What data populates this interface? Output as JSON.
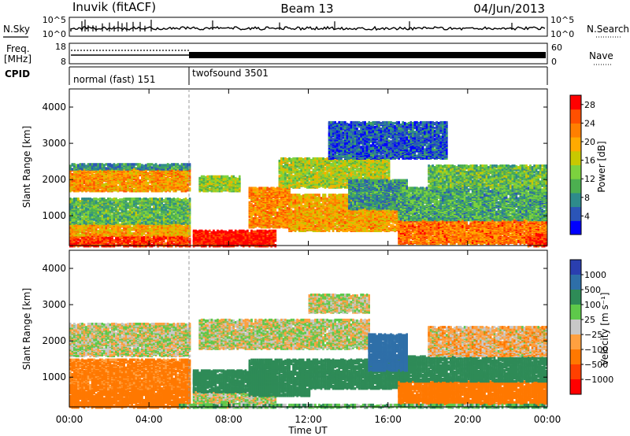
{
  "header": {
    "station": "Inuvik (fitACF)",
    "beam": "Beam 13",
    "date": "04/Jun/2013"
  },
  "nsky_panel": {
    "left_label": "N.Sky",
    "left_ticks": [
      "10^5",
      "10^0"
    ],
    "right_label": "N.Search",
    "right_ticks": [
      "10^5",
      "10^0"
    ]
  },
  "freq_panel": {
    "left_label_top": "Freq.",
    "left_label_bottom": "[MHz]",
    "left_ticks": [
      18,
      8
    ],
    "right_label": "Nave",
    "right_ticks": [
      60,
      0
    ]
  },
  "cpid_panel": {
    "label": "CPID",
    "programs": [
      {
        "name": "normal (fast) 151",
        "start": 0,
        "end": 6
      },
      {
        "name": "twofsound 3501",
        "start": 6,
        "end": 24
      }
    ]
  },
  "chart_data": [
    {
      "type": "heatmap",
      "title": "Power",
      "xlabel": "Time UT",
      "ylabel": "Slant Range [km]",
      "xlim": [
        0,
        24
      ],
      "ylim": [
        180,
        4500
      ],
      "x_ticks": [
        "00:00",
        "04:00",
        "08:00",
        "12:00",
        "16:00",
        "20:00",
        "00:00"
      ],
      "y_ticks": [
        1000,
        2000,
        3000,
        4000
      ],
      "colorbar": {
        "label": "Power [dB]",
        "ticks": [
          4,
          8,
          12,
          16,
          20,
          24,
          28
        ],
        "range": [
          0,
          30
        ],
        "colors": [
          "#0000ff",
          "#2b55b8",
          "#2e8b8b",
          "#4caf50",
          "#7cd23e",
          "#c8c800",
          "#ffaa00",
          "#ff7f00",
          "#ff5000",
          "#ff0000"
        ]
      },
      "regions": [
        {
          "t0": 0,
          "t1": 6,
          "r0": 180,
          "r1": 480,
          "value": 27
        },
        {
          "t0": 6.2,
          "t1": 10.3,
          "r0": 180,
          "r1": 600,
          "value": 29
        },
        {
          "t0": 0,
          "t1": 6,
          "r0": 480,
          "r1": 800,
          "value": 20
        },
        {
          "t0": 0,
          "t1": 6,
          "r0": 800,
          "r1": 1500,
          "value": 11
        },
        {
          "t0": 0,
          "t1": 6,
          "r0": 1700,
          "r1": 2300,
          "value": 21
        },
        {
          "t0": 0,
          "t1": 6,
          "r0": 2300,
          "r1": 2450,
          "value": 8
        },
        {
          "t0": 6.5,
          "t1": 8.5,
          "r0": 1700,
          "r1": 2100,
          "value": 14
        },
        {
          "t0": 9,
          "t1": 11,
          "r0": 700,
          "r1": 1800,
          "value": 22
        },
        {
          "t0": 10.5,
          "t1": 16,
          "r0": 1800,
          "r1": 2600,
          "value": 15
        },
        {
          "t0": 11,
          "t1": 17,
          "r0": 600,
          "r1": 1600,
          "value": 20
        },
        {
          "t0": 14,
          "t1": 17,
          "r0": 1200,
          "r1": 2000,
          "value": 8
        },
        {
          "t0": 16.5,
          "t1": 24,
          "r0": 250,
          "r1": 900,
          "value": 23
        },
        {
          "t0": 16.5,
          "t1": 24,
          "r0": 900,
          "r1": 1800,
          "value": 10
        },
        {
          "t0": 18,
          "t1": 24,
          "r0": 1800,
          "r1": 2400,
          "value": 12
        },
        {
          "t0": 23,
          "t1": 24,
          "r0": 180,
          "r1": 500,
          "value": 27
        },
        {
          "t0": 13,
          "t1": 19,
          "r0": 2600,
          "r1": 3600,
          "value": 5
        }
      ]
    },
    {
      "type": "heatmap",
      "title": "Velocity",
      "xlabel": "Time UT",
      "ylabel": "Slant Range [km]",
      "xlim": [
        0,
        24
      ],
      "ylim": [
        180,
        4500
      ],
      "x_ticks": [
        "00:00",
        "04:00",
        "08:00",
        "12:00",
        "16:00",
        "20:00",
        "00:00"
      ],
      "y_ticks": [
        1000,
        2000,
        3000,
        4000
      ],
      "colorbar": {
        "label": "Velocity [m s⁻¹]",
        "ticks": [
          "1000",
          "500",
          "100",
          "25",
          "−25",
          "−100",
          "−500",
          "−1000"
        ],
        "colors": [
          "#2a3fb0",
          "#2e6fa8",
          "#2e8b57",
          "#5ec94a",
          "#c8c8c8",
          "#ffa040",
          "#ff7800",
          "#ff4000",
          "#ff0000"
        ]
      },
      "regions": [
        {
          "t0": 0,
          "t1": 6,
          "r0": 180,
          "r1": 700,
          "value": -300
        },
        {
          "t0": 0,
          "t1": 6,
          "r0": 700,
          "r1": 1500,
          "value": -150
        },
        {
          "t0": 0,
          "t1": 6,
          "r0": 1600,
          "r1": 2500,
          "value": 0
        },
        {
          "t0": 6.2,
          "t1": 10.3,
          "r0": 180,
          "r1": 600,
          "value": 0
        },
        {
          "t0": 6.2,
          "t1": 10.3,
          "r0": 600,
          "r1": 1200,
          "value": 200
        },
        {
          "t0": 6.5,
          "t1": 15,
          "r0": 1800,
          "r1": 2600,
          "value": 0
        },
        {
          "t0": 9,
          "t1": 12,
          "r0": 500,
          "r1": 1500,
          "value": 200
        },
        {
          "t0": 12,
          "t1": 17,
          "r0": 700,
          "r1": 1500,
          "value": 300
        },
        {
          "t0": 16.5,
          "t1": 24,
          "r0": 250,
          "r1": 900,
          "value": -300
        },
        {
          "t0": 16.5,
          "t1": 24,
          "r0": 900,
          "r1": 1600,
          "value": 300
        },
        {
          "t0": 15,
          "t1": 17,
          "r0": 1200,
          "r1": 2200,
          "value": 700
        },
        {
          "t0": 18,
          "t1": 24,
          "r0": 1600,
          "r1": 2400,
          "value": -50
        },
        {
          "t0": 5.5,
          "t1": 24,
          "r0": 180,
          "r1": 260,
          "value": 80
        },
        {
          "t0": 12,
          "t1": 15,
          "r0": 2800,
          "r1": 3300,
          "value": 0
        }
      ]
    }
  ]
}
